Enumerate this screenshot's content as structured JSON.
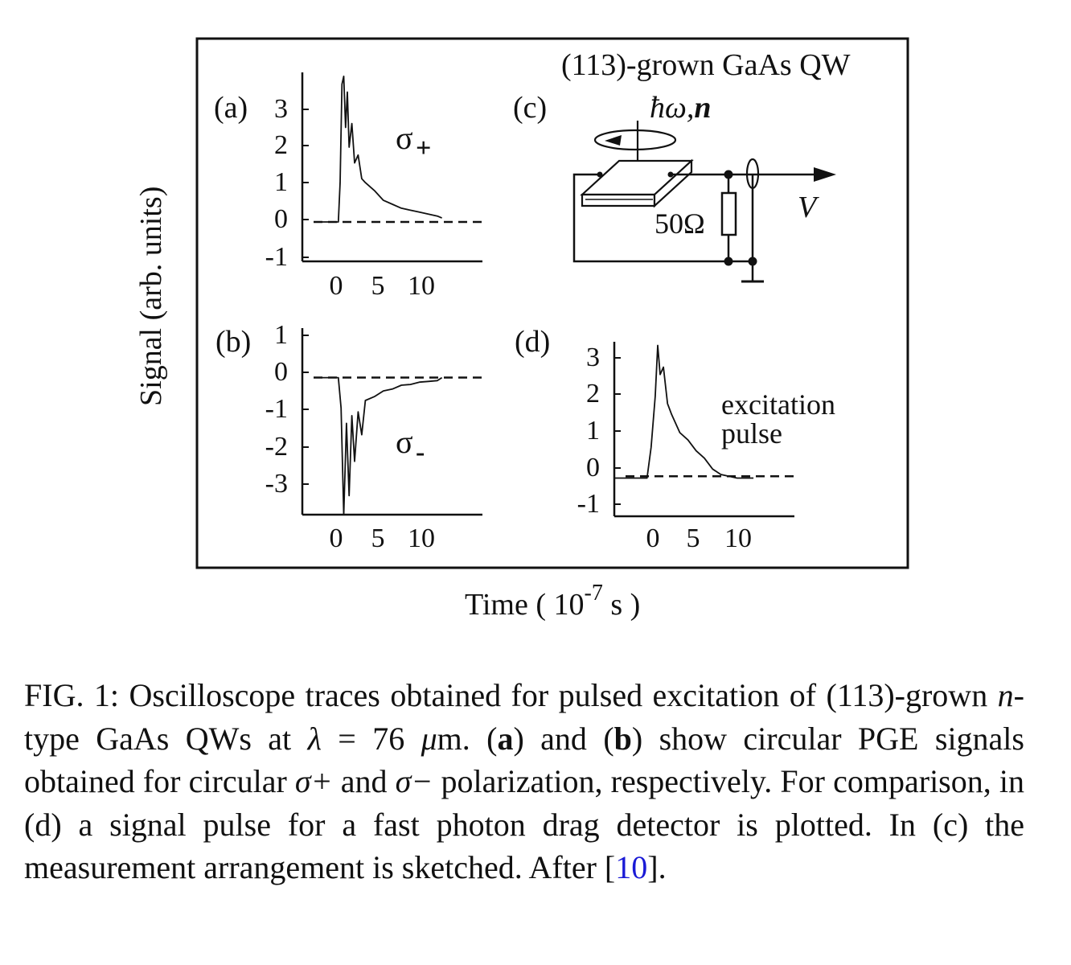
{
  "figure": {
    "frame_title": "(113)-grown  GaAs QW",
    "y_axis_label": "Signal (arb. units)",
    "x_axis_label_prefix": "Time ( 10",
    "x_axis_label_exp": "-7",
    "x_axis_label_suffix": " s )",
    "panel_c": {
      "label": "(c)",
      "beam_label_hw": "ħω,",
      "beam_label_n": "n",
      "resistor_label": "50Ω",
      "voltage_label": "V"
    }
  },
  "chart_data": [
    {
      "panel": "(a)",
      "type": "line",
      "annotation": "σ+",
      "x_ticks": [
        "0",
        "5",
        "10"
      ],
      "y_ticks": [
        "3",
        "2",
        "1",
        "0",
        "-1"
      ],
      "xlim": [
        -4,
        16
      ],
      "ylim": [
        -1,
        3.8
      ],
      "series": [
        {
          "x": [
            -2.5,
            0.0,
            0.2,
            0.4,
            0.6,
            0.8,
            1.0,
            1.2,
            1.5,
            1.8,
            2.2,
            2.6,
            3.0,
            4.0,
            5.0,
            6.0,
            7.0,
            8.0,
            9.0,
            10.0,
            11.0,
            11.5
          ],
          "y": [
            0,
            0,
            1.0,
            3.5,
            3.7,
            2.4,
            3.3,
            1.9,
            2.5,
            1.5,
            1.7,
            1.1,
            1.0,
            0.8,
            0.55,
            0.45,
            0.35,
            0.3,
            0.25,
            0.2,
            0.15,
            0.1
          ]
        }
      ],
      "baseline": 0
    },
    {
      "panel": "(b)",
      "type": "line",
      "annotation": "σ-",
      "x_ticks": [
        "0",
        "5",
        "10"
      ],
      "y_ticks": [
        "1",
        "0",
        "-1",
        "-2",
        "-3"
      ],
      "xlim": [
        -4,
        16
      ],
      "ylim": [
        -3.6,
        1.3
      ],
      "series": [
        {
          "x": [
            -2.5,
            0.0,
            0.3,
            0.6,
            0.9,
            1.2,
            1.5,
            1.8,
            2.2,
            2.6,
            3.0,
            4.0,
            5.0,
            6.0,
            7.0,
            8.0,
            9.0,
            10.0,
            11.0,
            11.5
          ],
          "y": [
            0,
            0,
            -0.8,
            -3.6,
            -1.2,
            -3.1,
            -1.0,
            -2.2,
            -0.9,
            -1.5,
            -0.6,
            -0.5,
            -0.35,
            -0.3,
            -0.2,
            -0.18,
            -0.12,
            -0.1,
            -0.08,
            0
          ]
        }
      ],
      "baseline": 0
    },
    {
      "panel": "(d)",
      "type": "line",
      "annotation": "excitation pulse",
      "x_ticks": [
        "0",
        "5",
        "10"
      ],
      "y_ticks": [
        "3",
        "2",
        "1",
        "0",
        "-1"
      ],
      "xlim": [
        -5,
        17
      ],
      "ylim": [
        -1.1,
        3.7
      ],
      "series": [
        {
          "x": [
            -5.0,
            -1.0,
            -0.5,
            0.0,
            0.3,
            0.6,
            1.0,
            1.5,
            2.0,
            3.0,
            4.0,
            5.0,
            6.0,
            7.0,
            8.0,
            9.0,
            10.0,
            12.0
          ],
          "y": [
            -0.05,
            -0.05,
            0.8,
            2.2,
            3.6,
            2.8,
            3.0,
            2.0,
            1.7,
            1.2,
            1.0,
            0.7,
            0.5,
            0.2,
            0.05,
            0.0,
            -0.05,
            -0.05
          ]
        }
      ],
      "baseline": 0
    }
  ],
  "caption": {
    "fig_label": "FIG. 1: ",
    "part1": "Oscilloscope traces obtained for pulsed excitation of (113)-grown ",
    "n_var": "n",
    "part2": "-type GaAs QWs at ",
    "lambda_sym": "λ",
    "part3": " = 76 ",
    "mu_sym": "μ",
    "part4": "m. (",
    "bold_a": "a",
    "part5": ") and (",
    "bold_b": "b",
    "part6": ") show circular PGE signals obtained for circular ",
    "sigma_plus": "σ+",
    "part7": " and ",
    "sigma_minus": "σ−",
    "part8": " polarization, respectively. For comparison, in (d) a signal pulse for a fast photon drag detector is plotted. In (c) the measurement arrangement is sketched. After [",
    "ref_num": "10",
    "part9": "]."
  }
}
